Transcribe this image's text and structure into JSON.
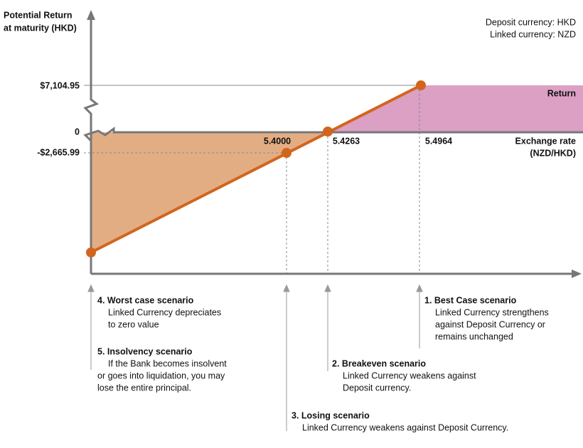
{
  "y_axis_label": [
    "Potential Return",
    "at maturity (HKD)"
  ],
  "currencies": [
    "Deposit currency: HKD",
    "Linked currency: NZD"
  ],
  "y_labels": [
    "$7,104.95",
    "0",
    "-$2,665.99"
  ],
  "x_labels": [
    "5.4000",
    "5.4263",
    "5.4964"
  ],
  "x_axis_label": [
    "Exchange rate",
    "(NZD/HKD)"
  ],
  "region_label": "Return",
  "scenarios": [
    {
      "title": "1. Best Case scenario",
      "lines": [
        "Linked Currency strengthens",
        "against Deposit Currency or",
        "remains unchanged"
      ]
    },
    {
      "title": "2. Breakeven scenario",
      "lines": [
        "Linked Currency weakens against",
        "Deposit currency."
      ]
    },
    {
      "title": "3. Losing scenario",
      "lines": [
        "Linked Currency weakens against Deposit Currency."
      ]
    },
    {
      "title": "4. Worst case scenario",
      "lines": [
        "Linked Currency depreciates",
        "to zero value"
      ]
    },
    {
      "title": "5. Insolvency scenario",
      "lines": [
        "If the Bank becomes insolvent",
        "or goes into liquidation, you may",
        "lose the entire principal."
      ]
    }
  ]
}
